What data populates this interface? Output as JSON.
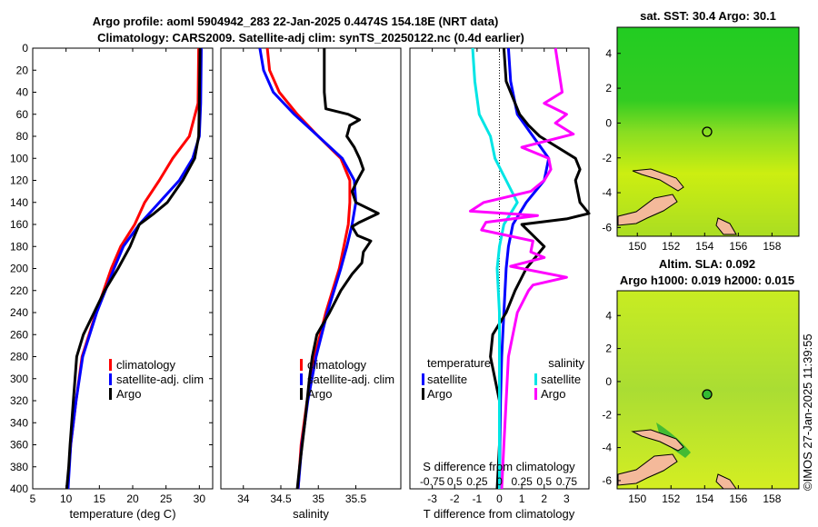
{
  "title_line1": "Argo profile: aoml 5904942_283 22-Jan-2025 0.4474S 154.18E (NRT data)",
  "title_line2": "Climatology: CARS2009. Satellite-adj clim: synTS_20250122.nc (0.4d earlier)",
  "watermark": "©IMOS 27-Jan-2025 11:39:55",
  "colors": {
    "climatology": "#ff0000",
    "satellite": "#0000ff",
    "argo": "#000000",
    "satellite_s": "#00e5e5",
    "argo_s": "#ff00ff"
  },
  "chart_data": [
    {
      "type": "line",
      "id": "temperature",
      "xlabel": "temperature (deg C)",
      "ylabel": "",
      "xlim": [
        5,
        32
      ],
      "ylim": [
        400,
        0
      ],
      "xticks": [
        5,
        10,
        15,
        20,
        25,
        30
      ],
      "yticks": [
        0,
        20,
        40,
        60,
        80,
        100,
        120,
        140,
        160,
        180,
        200,
        220,
        240,
        260,
        280,
        300,
        320,
        340,
        360,
        380,
        400
      ],
      "legend": [
        "climatology",
        "satellite-adj. clim",
        "Argo"
      ],
      "series": [
        {
          "name": "climatology",
          "color": "#ff0000",
          "depth": [
            0,
            50,
            80,
            100,
            120,
            140,
            160,
            180,
            200,
            240,
            280,
            320,
            360,
            400
          ],
          "x": [
            29.9,
            29.8,
            28.5,
            26.0,
            24.0,
            21.8,
            20.3,
            18.2,
            16.8,
            14.5,
            12.4,
            11.5,
            10.7,
            10.2
          ]
        },
        {
          "name": "satellite-adj. clim",
          "color": "#0000ff",
          "depth": [
            0,
            50,
            80,
            100,
            120,
            140,
            160,
            180,
            200,
            240,
            280,
            320,
            360,
            400
          ],
          "x": [
            30.3,
            30.2,
            30.0,
            29.0,
            27.0,
            24.0,
            21.0,
            18.6,
            17.2,
            14.6,
            12.5,
            11.5,
            10.7,
            10.3
          ]
        },
        {
          "name": "Argo",
          "color": "#000000",
          "depth": [
            0,
            50,
            80,
            100,
            120,
            140,
            150,
            160,
            170,
            180,
            200,
            220,
            240,
            260,
            280,
            320,
            360,
            380,
            400
          ],
          "x": [
            30.1,
            30.0,
            29.9,
            29.3,
            27.5,
            25.2,
            23.2,
            21.0,
            20.3,
            19.6,
            17.8,
            15.8,
            14.2,
            12.6,
            11.6,
            11.1,
            10.6,
            10.4,
            10.1
          ]
        }
      ]
    },
    {
      "type": "line",
      "id": "salinity",
      "xlabel": "salinity",
      "ylabel": "",
      "xlim": [
        33.7,
        36.1
      ],
      "ylim": [
        400,
        0
      ],
      "xticks": [
        34,
        34.5,
        35,
        35.5
      ],
      "legend": [
        "climatology",
        "satellite-adj. clim",
        "Argo"
      ],
      "series": [
        {
          "name": "climatology",
          "color": "#ff0000",
          "depth": [
            0,
            20,
            40,
            60,
            80,
            100,
            120,
            140,
            160,
            180,
            200,
            240,
            280,
            320,
            360,
            400
          ],
          "x": [
            34.32,
            34.35,
            34.48,
            34.72,
            35.0,
            35.3,
            35.42,
            35.42,
            35.4,
            35.34,
            35.28,
            35.1,
            34.95,
            34.85,
            34.77,
            34.73
          ]
        },
        {
          "name": "satellite-adj. clim",
          "color": "#0000ff",
          "depth": [
            0,
            20,
            40,
            60,
            80,
            100,
            120,
            140,
            160,
            180,
            200,
            240,
            280,
            320,
            360,
            400
          ],
          "x": [
            34.22,
            34.27,
            34.4,
            34.68,
            35.0,
            35.32,
            35.48,
            35.5,
            35.45,
            35.38,
            35.3,
            35.12,
            34.97,
            34.86,
            34.78,
            34.73
          ]
        },
        {
          "name": "Argo",
          "color": "#000000",
          "depth": [
            0,
            40,
            55,
            60,
            65,
            70,
            80,
            90,
            100,
            110,
            120,
            130,
            140,
            150,
            158,
            162,
            170,
            175,
            185,
            195,
            205,
            220,
            240,
            260,
            280,
            300,
            340,
            380,
            400
          ],
          "x": [
            35.08,
            35.08,
            35.1,
            35.4,
            35.55,
            35.42,
            35.38,
            35.48,
            35.55,
            35.6,
            35.52,
            35.45,
            35.5,
            35.8,
            35.55,
            35.45,
            35.52,
            35.7,
            35.6,
            35.58,
            35.45,
            35.3,
            35.15,
            34.98,
            34.92,
            34.88,
            34.82,
            34.75,
            34.72
          ]
        }
      ]
    },
    {
      "type": "line",
      "id": "difference",
      "xlabel": "T difference from climatology",
      "xlabel2": "S difference from climatology",
      "xlim": [
        -4,
        4
      ],
      "ylim": [
        400,
        0
      ],
      "xticks": [
        -3,
        -2,
        -1,
        0,
        1,
        2,
        3
      ],
      "s_ticks": [
        "-0.75",
        "0.5",
        "0.25",
        "0",
        "0.25",
        "0.5",
        "0.75"
      ],
      "s_tick_positions": [
        -3,
        -2,
        -1,
        0,
        1,
        2,
        3
      ],
      "legend_t_title": "temperature",
      "legend_s_title": "salinity",
      "legend_t": [
        "satellite",
        "Argo"
      ],
      "legend_s": [
        "satellite",
        "Argo"
      ],
      "series": [
        {
          "name": "T satellite",
          "color": "#0000ff",
          "depth": [
            0,
            30,
            60,
            80,
            100,
            120,
            140,
            160,
            180,
            200,
            240,
            280,
            320,
            360,
            400
          ],
          "x": [
            0.4,
            0.5,
            0.8,
            1.5,
            2.2,
            2.0,
            1.2,
            0.6,
            0.4,
            0.3,
            0.2,
            0.1,
            0.05,
            0.02,
            0.0
          ]
        },
        {
          "name": "T Argo",
          "color": "#000000",
          "depth": [
            0,
            30,
            60,
            70,
            80,
            90,
            100,
            110,
            120,
            140,
            150,
            155,
            160,
            170,
            180,
            200,
            220,
            240,
            260,
            280,
            320,
            360,
            400
          ],
          "x": [
            0.2,
            0.3,
            0.9,
            1.3,
            1.8,
            2.6,
            3.4,
            3.6,
            3.4,
            3.6,
            4.0,
            3.0,
            1.0,
            1.5,
            2.0,
            1.2,
            0.7,
            0.3,
            -0.3,
            -0.4,
            0.0,
            0.0,
            -0.1
          ]
        },
        {
          "name": "S satellite",
          "color": "#00e5e5",
          "depth": [
            0,
            30,
            60,
            80,
            100,
            120,
            140,
            160,
            180,
            200,
            240,
            280,
            320,
            360,
            400
          ],
          "x": [
            -1.2,
            -1.1,
            -0.9,
            -0.4,
            -0.2,
            0.3,
            0.8,
            0.2,
            0.0,
            -0.1,
            0.0,
            0.0,
            0.0,
            0.0,
            0.0
          ]
        },
        {
          "name": "S Argo",
          "color": "#ff00ff",
          "depth": [
            0,
            40,
            50,
            60,
            68,
            78,
            90,
            100,
            110,
            120,
            130,
            140,
            148,
            152,
            158,
            165,
            175,
            185,
            190,
            198,
            208,
            215,
            220,
            240,
            280,
            320,
            360,
            400
          ],
          "x": [
            2.5,
            2.8,
            2.0,
            3.0,
            2.5,
            3.3,
            1.0,
            2.2,
            2.3,
            2.0,
            1.4,
            -0.7,
            -1.3,
            1.7,
            -0.6,
            -0.8,
            1.5,
            1.4,
            2.0,
            0.5,
            3.0,
            1.5,
            1.3,
            0.8,
            0.4,
            0.3,
            0.2,
            0.1
          ]
        }
      ]
    }
  ],
  "maps": [
    {
      "title": "sat. SST: 30.4 Argo: 30.1",
      "xticks": [
        "150",
        "152",
        "154",
        "156",
        "158"
      ],
      "yticks": [
        "4",
        "2",
        "0",
        "-2",
        "-4",
        "-6"
      ],
      "marker_lon": 154.18,
      "marker_lat": -0.45
    },
    {
      "title_line1": "Altim. SLA: 0.092",
      "title_line2": "Argo h1000: 0.019 h2000: 0.015",
      "xticks": [
        "150",
        "152",
        "154",
        "156",
        "158"
      ],
      "yticks": [
        "4",
        "2",
        "0",
        "-2",
        "-4",
        "-6"
      ],
      "marker_lon": 154.18,
      "marker_lat": -0.45
    }
  ]
}
